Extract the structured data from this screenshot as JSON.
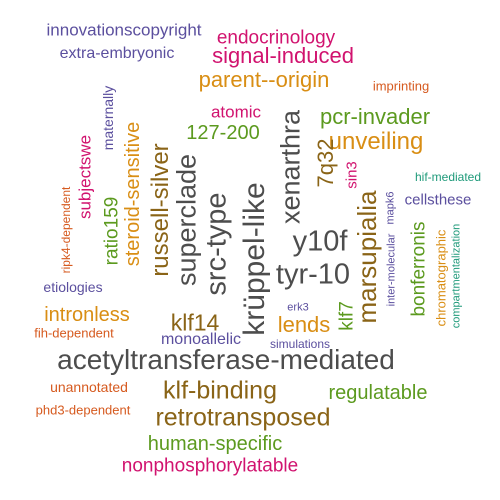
{
  "palette": {
    "gray": "#4d4d4d",
    "magenta": "#d1136f",
    "orange": "#d98e14",
    "olive": "#5c9a1f",
    "purple": "#5b4f9e",
    "brown": "#8a6417",
    "red_orange": "#d65a1f",
    "teal": "#1f9a7a"
  },
  "words": [
    {
      "text": "innovationscopyright",
      "color": "purple"
    },
    {
      "text": "endocrinology",
      "color": "magenta"
    },
    {
      "text": "extra-embryonic",
      "color": "purple"
    },
    {
      "text": "signal-induced",
      "color": "magenta"
    },
    {
      "text": "parent--origin",
      "color": "orange"
    },
    {
      "text": "imprinting",
      "color": "red_orange"
    },
    {
      "text": "maternally",
      "color": "purple"
    },
    {
      "text": "atomic",
      "color": "magenta"
    },
    {
      "text": "pcr-invader",
      "color": "olive"
    },
    {
      "text": "xenarthra",
      "color": "gray"
    },
    {
      "text": "127-200",
      "color": "olive"
    },
    {
      "text": "unveiling",
      "color": "orange"
    },
    {
      "text": "subjectswe",
      "color": "magenta"
    },
    {
      "text": "steroid-sensitive",
      "color": "orange"
    },
    {
      "text": "russell-silver",
      "color": "brown"
    },
    {
      "text": "superclade",
      "color": "gray"
    },
    {
      "text": "src-type",
      "color": "gray"
    },
    {
      "text": "krüppel-like",
      "color": "gray"
    },
    {
      "text": "7q32",
      "color": "brown"
    },
    {
      "text": "sin3",
      "color": "magenta"
    },
    {
      "text": "hif-mediated",
      "color": "teal"
    },
    {
      "text": "marsupialia",
      "color": "brown"
    },
    {
      "text": "mapk6",
      "color": "purple"
    },
    {
      "text": "cellsthese",
      "color": "purple"
    },
    {
      "text": "ripk4-dependent",
      "color": "red_orange"
    },
    {
      "text": "ratio159",
      "color": "olive"
    },
    {
      "text": "y10f",
      "color": "gray"
    },
    {
      "text": "tyr-10",
      "color": "gray"
    },
    {
      "text": "bonferronis",
      "color": "olive"
    },
    {
      "text": "chromatographic",
      "color": "orange"
    },
    {
      "text": "inter-molecular",
      "color": "purple"
    },
    {
      "text": "compartmentalization",
      "color": "teal"
    },
    {
      "text": "etiologies",
      "color": "purple"
    },
    {
      "text": "intronless",
      "color": "orange"
    },
    {
      "text": "klf14",
      "color": "brown"
    },
    {
      "text": "lends",
      "color": "orange"
    },
    {
      "text": "klf7",
      "color": "olive"
    },
    {
      "text": "erk3",
      "color": "purple"
    },
    {
      "text": "fih-dependent",
      "color": "red_orange"
    },
    {
      "text": "monoallelic",
      "color": "purple"
    },
    {
      "text": "simulations",
      "color": "purple"
    },
    {
      "text": "acetyltransferase-mediated",
      "color": "gray"
    },
    {
      "text": "unannotated",
      "color": "red_orange"
    },
    {
      "text": "klf-binding",
      "color": "brown"
    },
    {
      "text": "regulatable",
      "color": "olive"
    },
    {
      "text": "phd3-dependent",
      "color": "red_orange"
    },
    {
      "text": "retrotransposed",
      "color": "brown"
    },
    {
      "text": "human-specific",
      "color": "olive"
    },
    {
      "text": "nonphosphorylatable",
      "color": "magenta"
    }
  ]
}
